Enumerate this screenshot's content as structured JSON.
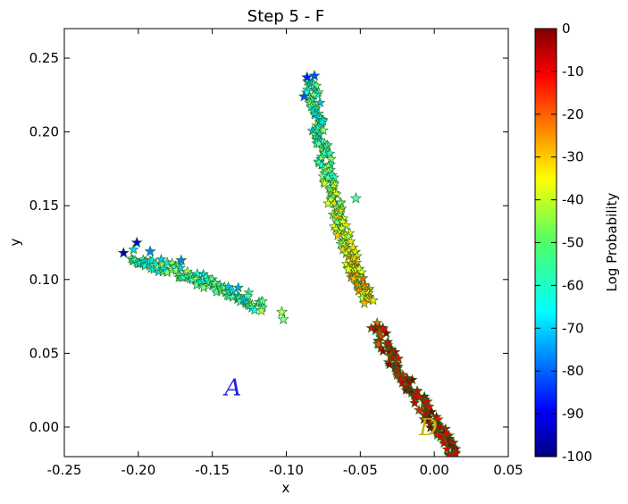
{
  "chart_data": {
    "type": "scatter",
    "title": "Step 5 - F",
    "xlabel": "x",
    "ylabel": "y",
    "xlim": [
      -0.25,
      0.05
    ],
    "ylim": [
      -0.02,
      0.27
    ],
    "x_ticks": [
      "-0.25",
      "-0.20",
      "-0.15",
      "-0.10",
      "-0.05",
      "0.00",
      "0.05"
    ],
    "y_ticks": [
      "0.00",
      "0.05",
      "0.10",
      "0.15",
      "0.20",
      "0.25"
    ],
    "marker": "star",
    "colorbar": {
      "label": "Log Probability",
      "range": [
        -100,
        0
      ],
      "colormap": "jet",
      "ticks": [
        "0",
        "-10",
        "-20",
        "-30",
        "-40",
        "-50",
        "-60",
        "-70",
        "-80",
        "-90",
        "-100"
      ]
    },
    "clusters": [
      {
        "path": [
          [
            -0.205,
            0.116
          ],
          [
            -0.18,
            0.108
          ],
          [
            -0.155,
            0.099
          ],
          [
            -0.13,
            0.089
          ],
          [
            -0.115,
            0.08
          ]
        ],
        "log_probability": [
          -60,
          -58,
          -56,
          -62,
          -55
        ]
      },
      {
        "path": [
          [
            -0.083,
            0.235
          ],
          [
            -0.078,
            0.2
          ],
          [
            -0.072,
            0.17
          ],
          [
            -0.063,
            0.135
          ],
          [
            -0.053,
            0.105
          ],
          [
            -0.045,
            0.083
          ]
        ],
        "log_probability": [
          -60,
          -58,
          -50,
          -40,
          -30,
          -35
        ]
      },
      {
        "path": [
          [
            -0.04,
            0.07
          ],
          [
            -0.03,
            0.05
          ],
          [
            -0.015,
            0.025
          ],
          [
            0.0,
            0.003
          ],
          [
            0.014,
            -0.02
          ]
        ],
        "log_probability": [
          -12,
          -8,
          -5,
          -3,
          -2
        ]
      }
    ],
    "outliers": [
      {
        "x": -0.21,
        "y": 0.118,
        "log_probability": -95
      },
      {
        "x": -0.201,
        "y": 0.125,
        "log_probability": -90
      },
      {
        "x": -0.192,
        "y": 0.119,
        "log_probability": -75
      },
      {
        "x": -0.171,
        "y": 0.113,
        "log_probability": -75
      },
      {
        "x": -0.103,
        "y": 0.078,
        "log_probability": -45
      },
      {
        "x": -0.102,
        "y": 0.073,
        "log_probability": -50
      },
      {
        "x": -0.053,
        "y": 0.155,
        "log_probability": -55
      },
      {
        "x": -0.088,
        "y": 0.224,
        "log_probability": -80
      },
      {
        "x": -0.086,
        "y": 0.237,
        "log_probability": -85
      },
      {
        "x": -0.081,
        "y": 0.238,
        "log_probability": -80
      },
      {
        "x": -0.058,
        "y": 0.107,
        "log_probability": -40
      }
    ],
    "annotations": [
      {
        "text": "A",
        "x": -0.136,
        "y": 0.027,
        "color": "#1f1fe0"
      },
      {
        "text": "D",
        "x": -0.004,
        "y": 0.0,
        "color": "#c8b400"
      }
    ]
  }
}
